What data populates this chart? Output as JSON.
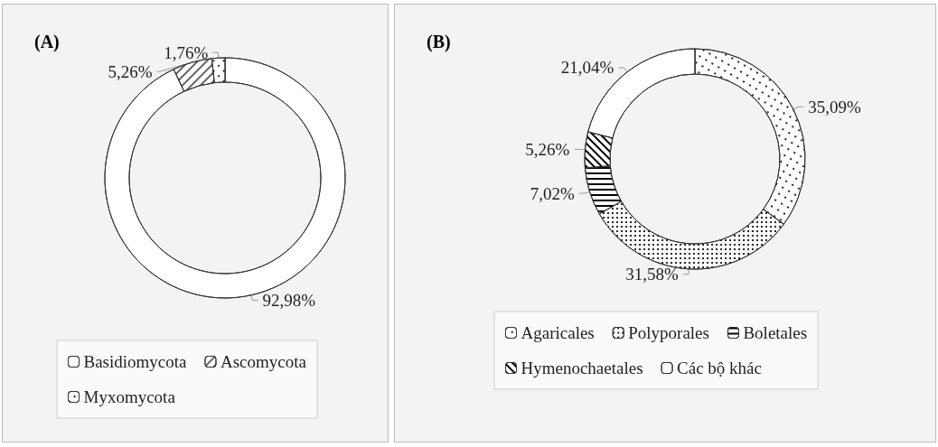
{
  "chart_data": [
    {
      "type": "donut",
      "title": "(A)",
      "categories": [
        "Basidiomycota",
        "Ascomycota",
        "Myxomycota"
      ],
      "values": [
        92.98,
        5.26,
        1.76
      ],
      "colors": [
        "#ffffff",
        "#ffffff",
        "#ffffff"
      ],
      "value_labels": [
        "92,98%",
        "5,26%",
        "1,76%"
      ],
      "legend": "bottom"
    },
    {
      "type": "donut",
      "title": "(B)",
      "categories": [
        "Agaricales",
        "Polyporales",
        "Boletales",
        "Hymenochaetales",
        "Các bộ khác"
      ],
      "values": [
        35.09,
        31.58,
        7.02,
        5.26,
        21.04
      ],
      "colors": [
        "#ffffff",
        "#ffffff",
        "#ffffff",
        "#ffffff",
        "#ffffff"
      ],
      "value_labels": [
        "35,09%",
        "31,58%",
        "7,02%",
        "5,26%",
        "21,04%"
      ],
      "legend": "bottom"
    }
  ]
}
